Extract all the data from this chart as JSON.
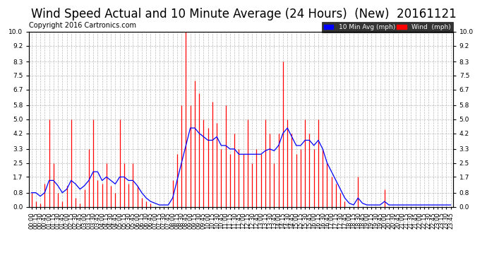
{
  "title": "Wind Speed Actual and 10 Minute Average (24 Hours)  (New)  20161121",
  "copyright": "Copyright 2016 Cartronics.com",
  "yticks": [
    0.0,
    0.8,
    1.7,
    2.5,
    3.3,
    4.2,
    5.0,
    5.8,
    6.7,
    7.5,
    8.3,
    9.2,
    10.0
  ],
  "ylim": [
    0.0,
    10.0
  ],
  "background_color": "#ffffff",
  "grid_color": "#aaaaaa",
  "red_color": "#ff0000",
  "blue_color": "#0000ff",
  "title_fontsize": 12,
  "copyright_fontsize": 7,
  "tick_fontsize": 6.5,
  "figsize": [
    6.9,
    3.75
  ],
  "dpi": 100,
  "wind_actual": [
    0.8,
    0.3,
    0.2,
    1.3,
    5.0,
    2.5,
    0.8,
    0.3,
    1.2,
    5.0,
    0.5,
    0.2,
    1.0,
    3.3,
    5.0,
    1.5,
    1.3,
    2.5,
    1.2,
    0.8,
    5.0,
    2.5,
    1.3,
    2.5,
    1.2,
    0.5,
    0.3,
    0.2,
    0.0,
    0.0,
    0.0,
    0.0,
    1.5,
    3.0,
    5.8,
    10.0,
    5.8,
    7.2,
    6.5,
    5.0,
    4.5,
    6.0,
    4.8,
    3.3,
    5.8,
    3.0,
    4.2,
    3.3,
    3.0,
    5.0,
    2.5,
    3.3,
    3.0,
    5.0,
    4.2,
    2.5,
    4.2,
    8.3,
    5.0,
    4.2,
    3.0,
    3.3,
    5.0,
    4.2,
    3.3,
    5.0,
    3.3,
    2.5,
    1.7,
    1.3,
    0.8,
    0.3,
    0.0,
    0.0,
    1.7,
    0.0,
    0.0,
    0.0,
    0.0,
    0.0,
    1.0,
    0.0,
    0.0,
    0.0,
    0.0,
    0.0,
    0.0,
    0.0,
    0.0,
    0.0,
    0.0,
    0.0,
    0.0,
    0.0,
    0.0,
    0.0
  ],
  "wind_avg": [
    0.8,
    0.8,
    0.6,
    0.8,
    1.5,
    1.5,
    1.2,
    0.8,
    1.0,
    1.5,
    1.3,
    1.0,
    1.2,
    1.5,
    2.0,
    2.0,
    1.5,
    1.7,
    1.5,
    1.3,
    1.7,
    1.7,
    1.5,
    1.5,
    1.2,
    0.8,
    0.5,
    0.3,
    0.2,
    0.1,
    0.1,
    0.1,
    0.5,
    1.5,
    2.5,
    3.5,
    4.5,
    4.5,
    4.2,
    4.0,
    3.8,
    3.8,
    4.0,
    3.5,
    3.5,
    3.3,
    3.3,
    3.0,
    3.0,
    3.0,
    3.0,
    3.0,
    3.0,
    3.2,
    3.3,
    3.2,
    3.5,
    4.2,
    4.5,
    4.0,
    3.5,
    3.5,
    3.8,
    3.8,
    3.5,
    3.8,
    3.3,
    2.5,
    2.0,
    1.5,
    1.0,
    0.5,
    0.2,
    0.1,
    0.5,
    0.2,
    0.1,
    0.1,
    0.1,
    0.1,
    0.3,
    0.1,
    0.1,
    0.1,
    0.1,
    0.1,
    0.1,
    0.1,
    0.1,
    0.1,
    0.1,
    0.1,
    0.1,
    0.1,
    0.1,
    0.1
  ]
}
